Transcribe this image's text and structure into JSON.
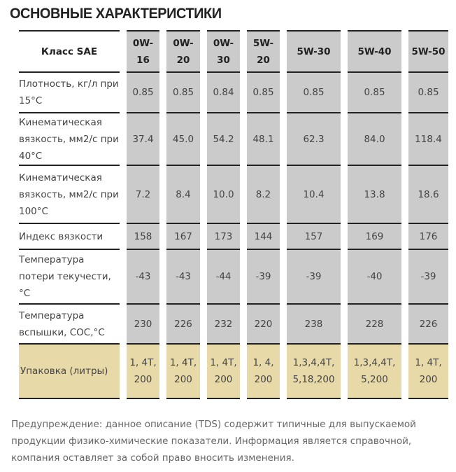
{
  "title": "ОСНОВНЫЕ ХАРАКТЕРИСТИКИ",
  "table": {
    "header": [
      "Класс SAE",
      "0W-16",
      "0W-20",
      "0W-30",
      "5W-20",
      "5W-30",
      "5W-40",
      "5W-50"
    ],
    "rows": [
      {
        "label": "Плотность, кг/л при 15°C",
        "values": [
          "0.85",
          "0.85",
          "0.84",
          "0.85",
          "0.85",
          "0.85",
          "0.85"
        ]
      },
      {
        "label": "Кинематическая вязкость, мм2/с при 40°C",
        "values": [
          "37.4",
          "45.0",
          "54.2",
          "48.1",
          "62.3",
          "84.0",
          "118.4"
        ]
      },
      {
        "label": "Кинематическая вязкость, мм2/с при 100°C",
        "values": [
          "7.2",
          "8.4",
          "10.0",
          "8.2",
          "10.4",
          "13.8",
          "18.6"
        ]
      },
      {
        "label": "Индекс вязкости",
        "values": [
          "158",
          "167",
          "173",
          "144",
          "157",
          "169",
          "176"
        ]
      },
      {
        "label": "Температура потери текучести,°C",
        "values": [
          "-43",
          "-43",
          "-44",
          "-39",
          "-39",
          "-40",
          "-39"
        ]
      },
      {
        "label": "Температура вспышки, COC,°C",
        "values": [
          "230",
          "226",
          "232",
          "220",
          "238",
          "228",
          "226"
        ]
      },
      {
        "label": "Упаковка (литры)",
        "values": [
          "1, 4T, 200",
          "1, 4T, 200",
          "1, 4T, 200",
          "1, 4, 200",
          "1,3,4,4T, 5,18,200",
          "1,3,4,4T, 5,200",
          "1, 4T, 200"
        ]
      }
    ]
  },
  "note": "Предупреждение: данное описание (TDS) содержит типичные для выпускаемой продукции физико-химические показатели. Информация является справочной, компания оставляет за собой право вносить изменения.",
  "colors": {
    "cell": "#cbcbcb",
    "packaging": "#e8d9a9"
  }
}
